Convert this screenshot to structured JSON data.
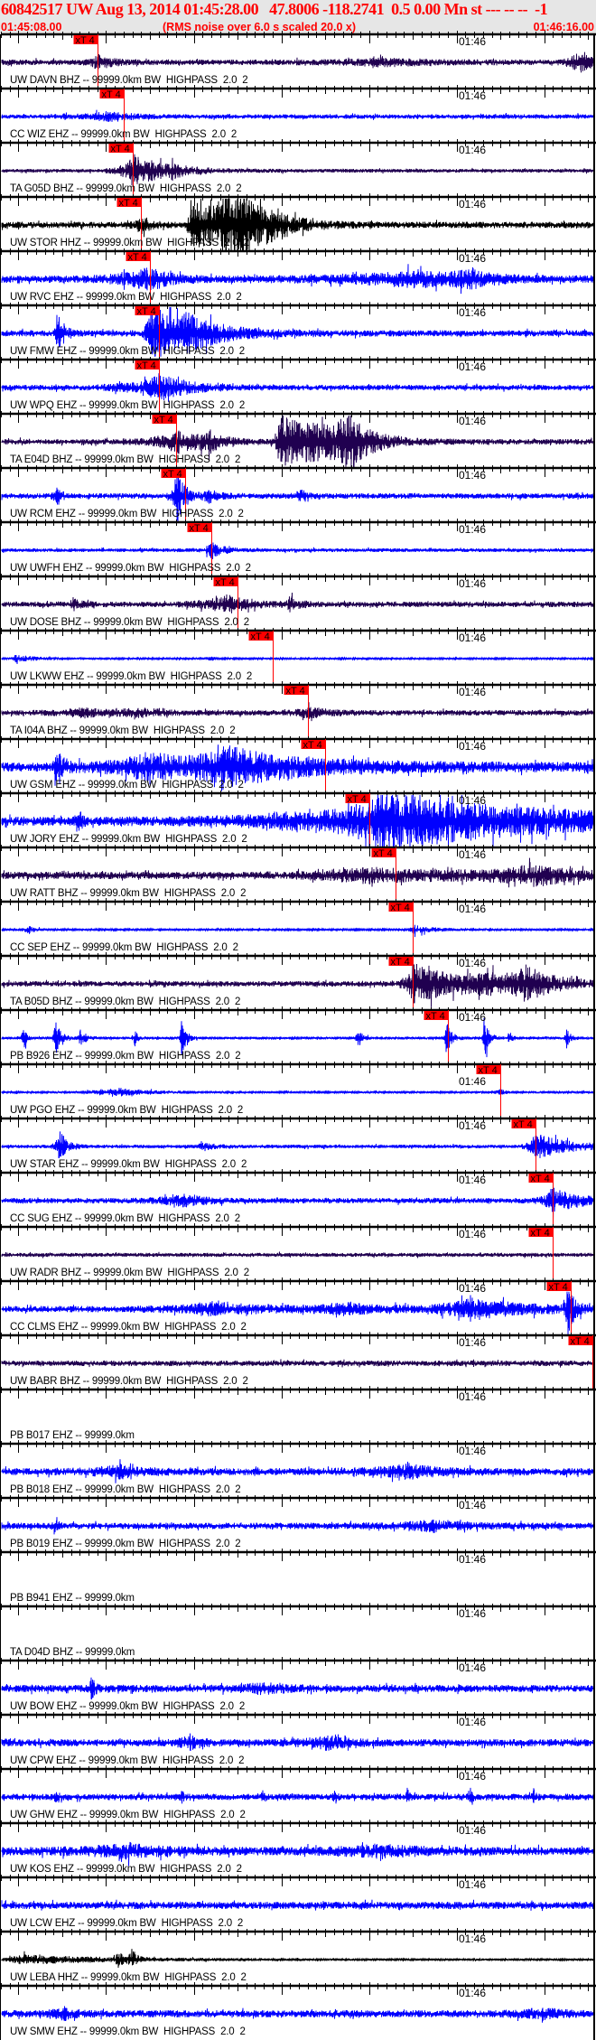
{
  "header": {
    "title": "60842517 UW Aug 13, 2014 01:45:28.00   47.8006 -118.2741  0.5 0.00 Mn st --- -- --  -1",
    "start_time": "01:45:08.00",
    "note": "(RMS noise over 6.0 s scaled 20.0 x)",
    "end_time": "01:46:16.00"
  },
  "chart_data": {
    "type": "line",
    "xlim": [
      "01:45:08.00",
      "01:46:16.00"
    ],
    "tick_label": "01:46",
    "pick_label": "xT 4",
    "grid": false,
    "colors": {
      "purple": "#200050",
      "blue": "#0000ff",
      "black": "#000000",
      "pick": "#ff0000",
      "header_bg": "#e6e6e6"
    },
    "traces": [
      {
        "label": "UW DAVN BHZ -- 99999.0km BW  HIGHPASS  2.0  2",
        "color": "#200050",
        "pick": "01:45:19.0"
      },
      {
        "label": "CC WIZ EHZ -- 99999.0km BW  HIGHPASS  2.0  2",
        "color": "#0000ff",
        "pick": "01:45:22.0"
      },
      {
        "label": "TA G05D BHZ -- 99999.0km BW  HIGHPASS  2.0  2",
        "color": "#200050",
        "pick": "01:45:23.0"
      },
      {
        "label": "UW STOR HHZ -- 99999.0km BW  HIGHPASS  2.0  2",
        "color": "#000000",
        "pick": "01:45:24.0"
      },
      {
        "label": "UW RVC EHZ -- 99999.0km BW  HIGHPASS  2.0  2",
        "color": "#0000ff",
        "pick": "01:45:25.0"
      },
      {
        "label": "UW FMW EHZ -- 99999.0km BW  HIGHPASS  2.0  2",
        "color": "#0000ff",
        "pick": "01:45:26.0"
      },
      {
        "label": "UW WPQ EHZ -- 99999.0km BW  HIGHPASS  2.0  2",
        "color": "#0000ff",
        "pick": "01:45:26.0"
      },
      {
        "label": "TA E04D BHZ -- 99999.0km BW  HIGHPASS  2.0  2",
        "color": "#200050",
        "pick": "01:45:28.0"
      },
      {
        "label": "UW RCM EHZ -- 99999.0km BW  HIGHPASS  2.0  2",
        "color": "#0000ff",
        "pick": "01:45:29.0"
      },
      {
        "label": "UW UWFH EHZ -- 99999.0km BW  HIGHPASS  2.0  2",
        "color": "#0000ff",
        "pick": "01:45:32.0"
      },
      {
        "label": "UW DOSE BHZ -- 99999.0km BW  HIGHPASS  2.0  2",
        "color": "#200050",
        "pick": "01:45:35.0"
      },
      {
        "label": "UW LKWW EHZ -- 99999.0km BW  HIGHPASS  2.0  2",
        "color": "#0000ff",
        "pick": "01:45:39.0"
      },
      {
        "label": "TA I04A BHZ -- 99999.0km BW  HIGHPASS  2.0  2",
        "color": "#200050",
        "pick": "01:45:43.0"
      },
      {
        "label": "UW GSM EHZ -- 99999.0km BW  HIGHPASS  2.0  2",
        "color": "#0000ff",
        "pick": "01:45:45.0"
      },
      {
        "label": "UW JORY EHZ -- 99999.0km BW  HIGHPASS  2.0  2",
        "color": "#0000ff",
        "pick": "01:45:50.0"
      },
      {
        "label": "UW RATT BHZ -- 99999.0km BW  HIGHPASS  2.0  2",
        "color": "#200050",
        "pick": "01:45:53.0"
      },
      {
        "label": "CC SEP EHZ -- 99999.0km BW  HIGHPASS  2.0  2",
        "color": "#0000ff",
        "pick": "01:45:55.0"
      },
      {
        "label": "TA B05D BHZ -- 99999.0km BW  HIGHPASS  2.0  2",
        "color": "#200050",
        "pick": "01:45:55.0"
      },
      {
        "label": "PB B926 EHZ -- 99999.0km BW  HIGHPASS  2.0  2",
        "color": "#0000ff",
        "pick": "01:45:59.0"
      },
      {
        "label": "UW PGO EHZ -- 99999.0km BW  HIGHPASS  2.0  2",
        "color": "#0000ff",
        "pick": "01:46:05.0"
      },
      {
        "label": "UW STAR EHZ -- 99999.0km BW  HIGHPASS  2.0  2",
        "color": "#0000ff",
        "pick": "01:46:09.0"
      },
      {
        "label": "CC SUG EHZ -- 99999.0km BW  HIGHPASS  2.0  2",
        "color": "#0000ff",
        "pick": "01:46:11.0"
      },
      {
        "label": "UW RADR BHZ -- 99999.0km BW  HIGHPASS  2.0  2",
        "color": "#200050",
        "pick": "01:46:11.0"
      },
      {
        "label": "CC CLMS EHZ -- 99999.0km BW  HIGHPASS  2.0  2",
        "color": "#0000ff",
        "pick": "01:46:13.0"
      },
      {
        "label": "UW BABR BHZ -- 99999.0km BW  HIGHPASS  2.0  2",
        "color": "#200050",
        "pick": "01:46:15.5"
      },
      {
        "label": "PB B017 EHZ -- 99999.0km",
        "color": "",
        "pick": ""
      },
      {
        "label": "PB B018 EHZ -- 99999.0km BW  HIGHPASS  2.0  2",
        "color": "#0000ff",
        "pick": ""
      },
      {
        "label": "PB B019 EHZ -- 99999.0km BW  HIGHPASS  2.0  2",
        "color": "#0000ff",
        "pick": ""
      },
      {
        "label": "PB B941 EHZ -- 99999.0km",
        "color": "",
        "pick": ""
      },
      {
        "label": "TA D04D BHZ -- 99999.0km",
        "color": "",
        "pick": ""
      },
      {
        "label": "UW BOW EHZ -- 99999.0km BW  HIGHPASS  2.0  2",
        "color": "#0000ff",
        "pick": ""
      },
      {
        "label": "UW CPW EHZ -- 99999.0km BW  HIGHPASS  2.0  2",
        "color": "#0000ff",
        "pick": ""
      },
      {
        "label": "UW GHW EHZ -- 99999.0km BW  HIGHPASS  2.0  2",
        "color": "#0000ff",
        "pick": ""
      },
      {
        "label": "UW KOS EHZ -- 99999.0km BW  HIGHPASS  2.0  2",
        "color": "#0000ff",
        "pick": ""
      },
      {
        "label": "UW LCW EHZ -- 99999.0km BW  HIGHPASS  2.0  2",
        "color": "#0000ff",
        "pick": ""
      },
      {
        "label": "UW LEBA HHZ -- 99999.0km BW  HIGHPASS  2.0  2",
        "color": "#000000",
        "pick": ""
      },
      {
        "label": "UW SMW EHZ -- 99999.0km BW  HIGHPASS  2.0  2",
        "color": "#0000ff",
        "pick": ""
      }
    ]
  }
}
